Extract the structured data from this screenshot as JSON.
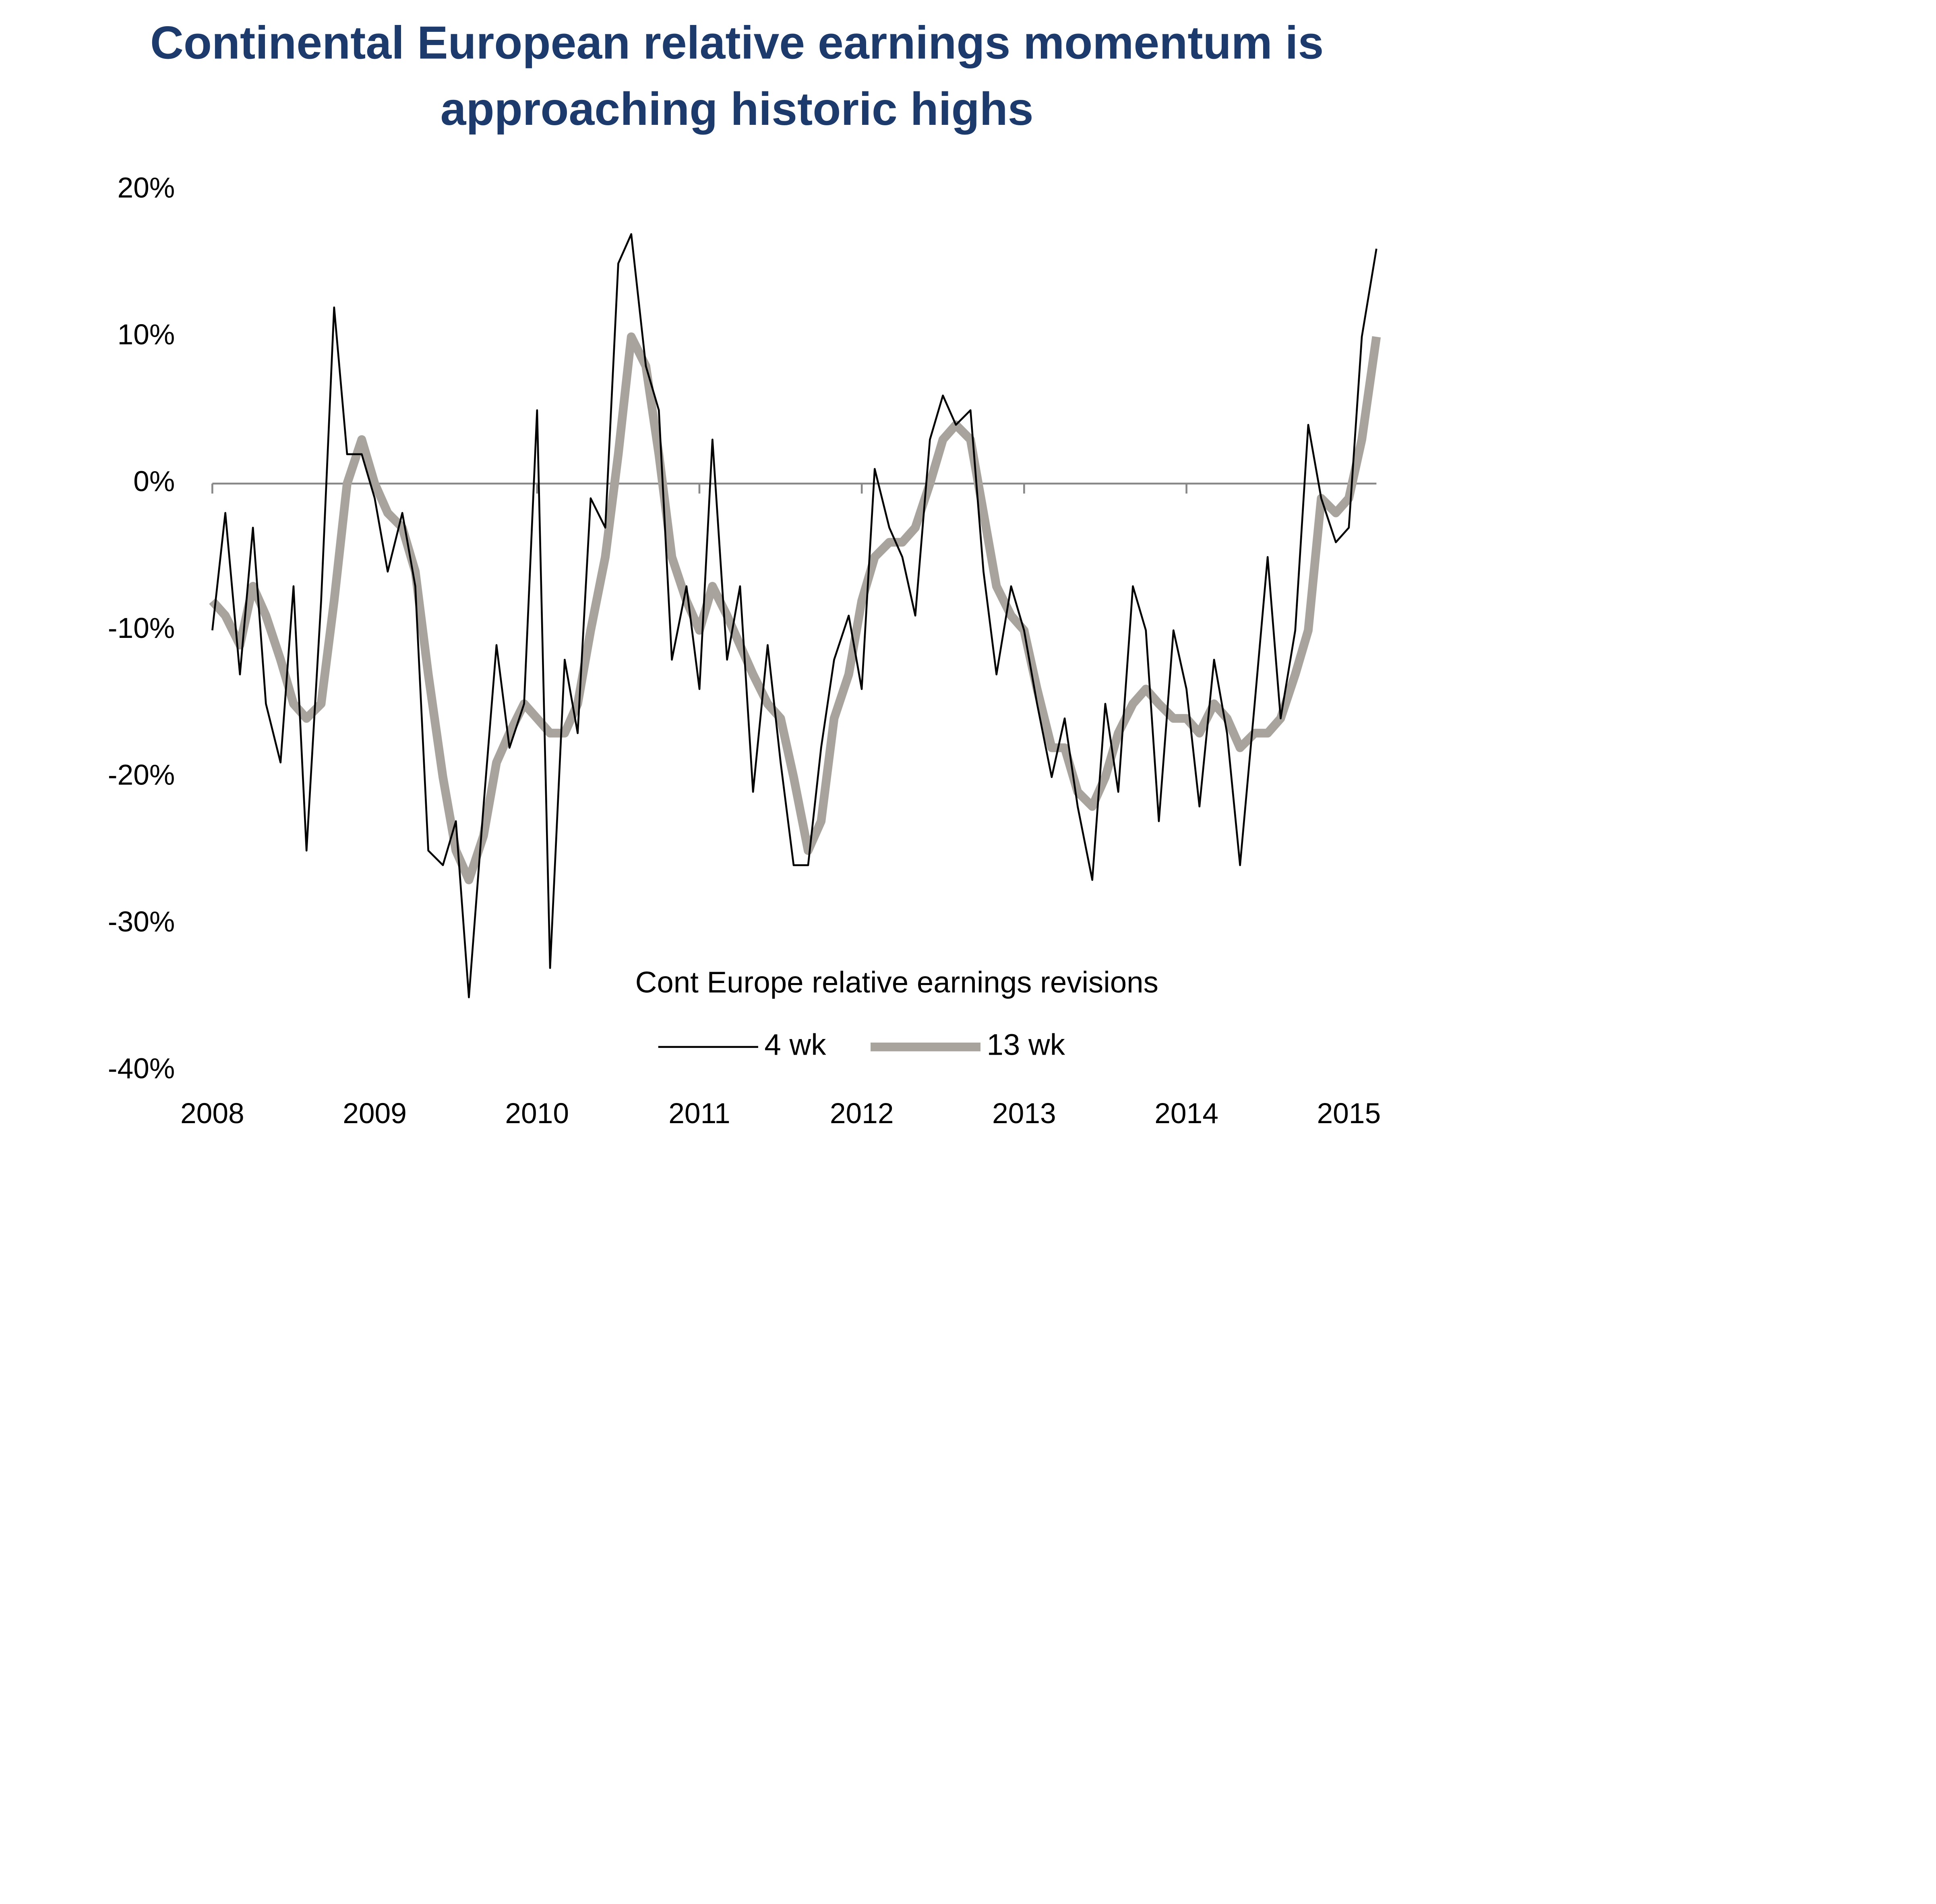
{
  "chart_data": {
    "type": "line",
    "title": [
      "Continental European relative earnings momentum is",
      "approaching historic highs"
    ],
    "legend_title": "Cont Europe relative earnings revisions",
    "x": [
      2008,
      2008.08,
      2008.17,
      2008.25,
      2008.33,
      2008.42,
      2008.5,
      2008.58,
      2008.67,
      2008.75,
      2008.83,
      2008.92,
      2009,
      2009.08,
      2009.17,
      2009.25,
      2009.33,
      2009.42,
      2009.5,
      2009.58,
      2009.67,
      2009.75,
      2009.83,
      2009.92,
      2010,
      2010.08,
      2010.17,
      2010.25,
      2010.33,
      2010.42,
      2010.5,
      2010.58,
      2010.67,
      2010.75,
      2010.83,
      2010.92,
      2011,
      2011.08,
      2011.17,
      2011.25,
      2011.33,
      2011.42,
      2011.5,
      2011.58,
      2011.67,
      2011.75,
      2011.83,
      2011.92,
      2012,
      2012.08,
      2012.17,
      2012.25,
      2012.33,
      2012.42,
      2012.5,
      2012.58,
      2012.67,
      2012.75,
      2012.83,
      2012.92,
      2013,
      2013.08,
      2013.17,
      2013.25,
      2013.33,
      2013.42,
      2013.5,
      2013.58,
      2013.67,
      2013.75,
      2013.83,
      2013.92,
      2014,
      2014.08,
      2014.17,
      2014.25,
      2014.33,
      2014.42,
      2014.5,
      2014.58,
      2014.67,
      2014.75,
      2014.83,
      2014.92,
      2015,
      2015.08,
      2015.17
    ],
    "series": [
      {
        "name": "4 wk",
        "color": "#000000",
        "width": 1.5,
        "values": [
          -10,
          -2,
          -13,
          -3,
          -15,
          -19,
          -7,
          -25,
          -8,
          12,
          2,
          2,
          -1,
          -6,
          -2,
          -7,
          -25,
          -26,
          -23,
          -35,
          -22,
          -11,
          -18,
          -15,
          5,
          -33,
          -12,
          -17,
          -1,
          -3,
          15,
          17,
          8,
          5,
          -12,
          -7,
          -14,
          3,
          -12,
          -7,
          -21,
          -11,
          -19,
          -26,
          -26,
          -18,
          -12,
          -9,
          -14,
          1,
          -3,
          -5,
          -9,
          3,
          6,
          4,
          5,
          -6,
          -13,
          -7,
          -10,
          -15,
          -20,
          -16,
          -22,
          -27,
          -15,
          -21,
          -7,
          -10,
          -23,
          -10,
          -14,
          -22,
          -12,
          -17,
          -26,
          -15,
          -5,
          -16,
          -10,
          4,
          -1,
          -4,
          -3,
          10,
          16
        ]
      },
      {
        "name": "13 wk",
        "color": "#a8a39d",
        "width": 7,
        "values": [
          -8,
          -9,
          -11,
          -7,
          -9,
          -12,
          -15,
          -16,
          -15,
          -8,
          0,
          3,
          0,
          -2,
          -3,
          -6,
          -13,
          -20,
          -25,
          -27,
          -24,
          -19,
          -17,
          -15,
          -16,
          -17,
          -17,
          -15,
          -10,
          -5,
          2,
          10,
          8,
          2,
          -5,
          -8,
          -10,
          -7,
          -9,
          -11,
          -13,
          -15,
          -16,
          -20,
          -25,
          -23,
          -16,
          -13,
          -8,
          -5,
          -4,
          -4,
          -3,
          0,
          3,
          4,
          3,
          -2,
          -7,
          -9,
          -10,
          -14,
          -18,
          -18,
          -21,
          -22,
          -20,
          -17,
          -15,
          -14,
          -15,
          -16,
          -16,
          -17,
          -15,
          -16,
          -18,
          -17,
          -17,
          -16,
          -13,
          -10,
          -1,
          -2,
          -1,
          3,
          10
        ]
      }
    ],
    "xlim": [
      2008,
      2015.17
    ],
    "ylim": [
      -40,
      20
    ],
    "xticks": [
      2008,
      2009,
      2010,
      2011,
      2012,
      2013,
      2014,
      2015
    ],
    "yticks": [
      {
        "value": 20,
        "label": "20%"
      },
      {
        "value": 10,
        "label": "10%"
      },
      {
        "value": 0,
        "label": "0%"
      },
      {
        "value": -10,
        "label": "-10%"
      },
      {
        "value": -20,
        "label": "-20%"
      },
      {
        "value": -30,
        "label": "-30%"
      },
      {
        "value": -40,
        "label": "-40%"
      }
    ]
  }
}
